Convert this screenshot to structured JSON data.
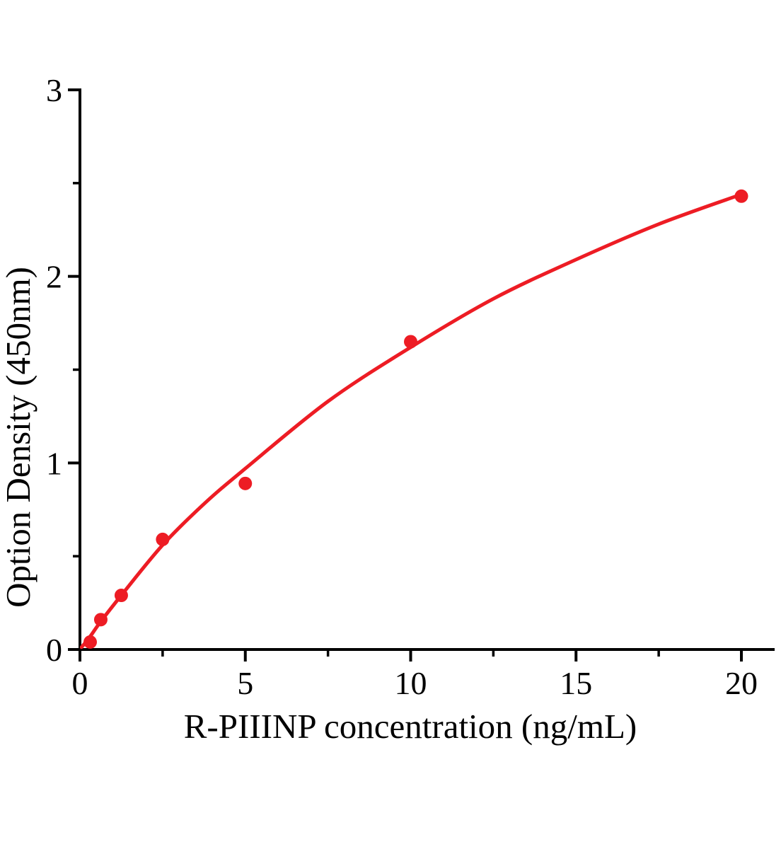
{
  "chart_data": {
    "type": "scatter",
    "title": "",
    "xlabel": "R-PIIINP concentration (ng/mL)",
    "ylabel": "Option Density (450nm)",
    "xlim": [
      0,
      21
    ],
    "ylim": [
      0,
      3
    ],
    "grid": false,
    "legend": "none",
    "axis_color": "#000000",
    "accent_color": "#ed1c24",
    "x_major_ticks": [
      0,
      5,
      10,
      15,
      20
    ],
    "x_minor_ticks": [
      2.5,
      7.5,
      12.5,
      17.5
    ],
    "y_major_ticks": [
      0,
      1,
      2,
      3
    ],
    "y_minor_ticks": [
      0.5,
      1.5,
      2.5
    ],
    "x_tick_labels": [
      "0",
      "5",
      "10",
      "15",
      "20"
    ],
    "y_tick_labels": [
      "0",
      "1",
      "2",
      "3"
    ],
    "series": [
      {
        "name": "standard-points",
        "type": "scatter",
        "marker": "circle",
        "color": "#ed1c24",
        "points": [
          [
            0.31,
            0.04
          ],
          [
            0.63,
            0.16
          ],
          [
            1.25,
            0.29
          ],
          [
            2.5,
            0.59
          ],
          [
            5,
            0.89
          ],
          [
            10,
            1.65
          ],
          [
            20,
            2.43
          ]
        ]
      },
      {
        "name": "fitted-curve",
        "type": "line",
        "color": "#ed1c24",
        "points": [
          [
            0.05,
            0.012
          ],
          [
            0.31,
            0.07
          ],
          [
            0.63,
            0.15
          ],
          [
            1.25,
            0.29
          ],
          [
            2.5,
            0.56
          ],
          [
            3.75,
            0.78
          ],
          [
            5,
            0.97
          ],
          [
            7.5,
            1.33
          ],
          [
            10,
            1.62
          ],
          [
            12.5,
            1.88
          ],
          [
            15,
            2.09
          ],
          [
            17.5,
            2.28
          ],
          [
            20,
            2.44
          ]
        ]
      }
    ]
  }
}
